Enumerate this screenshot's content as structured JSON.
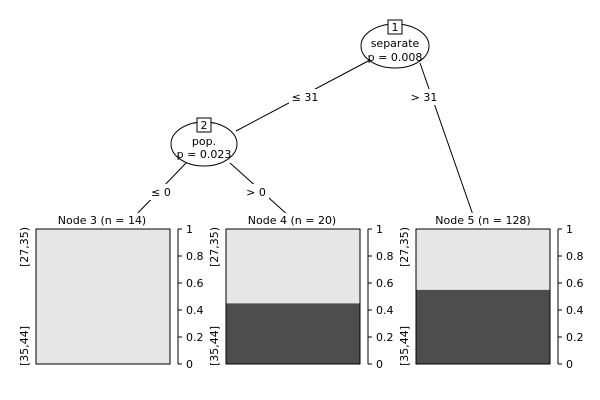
{
  "tree": {
    "inner_nodes": [
      {
        "id": "1",
        "variable": "separate",
        "pvalue": "p = 0.008"
      },
      {
        "id": "2",
        "variable": "pop.",
        "pvalue": "p = 0.023"
      }
    ],
    "edges": [
      {
        "label": "≤ 31"
      },
      {
        "label": "> 31"
      },
      {
        "label": "≤ 0"
      },
      {
        "label": "> 0"
      }
    ]
  },
  "terminal_nodes": [
    {
      "title": "Node 3 (n = 14)"
    },
    {
      "title": "Node 4 (n = 20)"
    },
    {
      "title": "Node 5 (n = 128)"
    }
  ],
  "colors": {
    "class_light": "#e6e6e6",
    "class_dark": "#4d4d4d",
    "line": "#000000",
    "background": "#ffffff"
  },
  "chart_data": {
    "type": "bar",
    "categories": [
      "Node 3",
      "Node 4",
      "Node 5"
    ],
    "series": [
      {
        "name": "[27,35)",
        "values": [
          1.0,
          0.55,
          0.45
        ]
      },
      {
        "name": "[35,44]",
        "values": [
          0.0,
          0.45,
          0.55
        ]
      }
    ],
    "class_labels": [
      "[27,35)",
      "[35,44]"
    ],
    "ylim": [
      0,
      1
    ],
    "yticks": [
      "0",
      "0.2",
      "0.4",
      "0.6",
      "0.8",
      "1"
    ]
  }
}
